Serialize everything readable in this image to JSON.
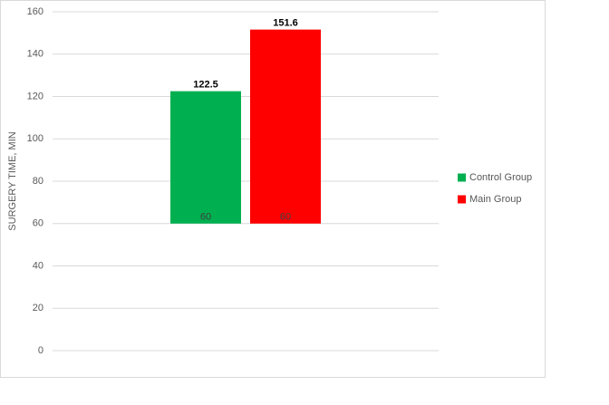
{
  "chart_data": {
    "type": "floating-bar",
    "y_label": "SURGERY TIME, MIN",
    "categories": [
      null
    ],
    "series": [
      {
        "name": "Control Group",
        "color": "#00b050",
        "low": [
          60
        ],
        "high": [
          122.5
        ]
      },
      {
        "name": "Main Group",
        "color": "#ff0000",
        "low": [
          60
        ],
        "high": [
          151.6
        ]
      }
    ],
    "ylim": [
      0,
      160
    ],
    "yticks": [
      0,
      20,
      40,
      60,
      80,
      100,
      120,
      140,
      160
    ],
    "grid": true,
    "legend": "right"
  }
}
